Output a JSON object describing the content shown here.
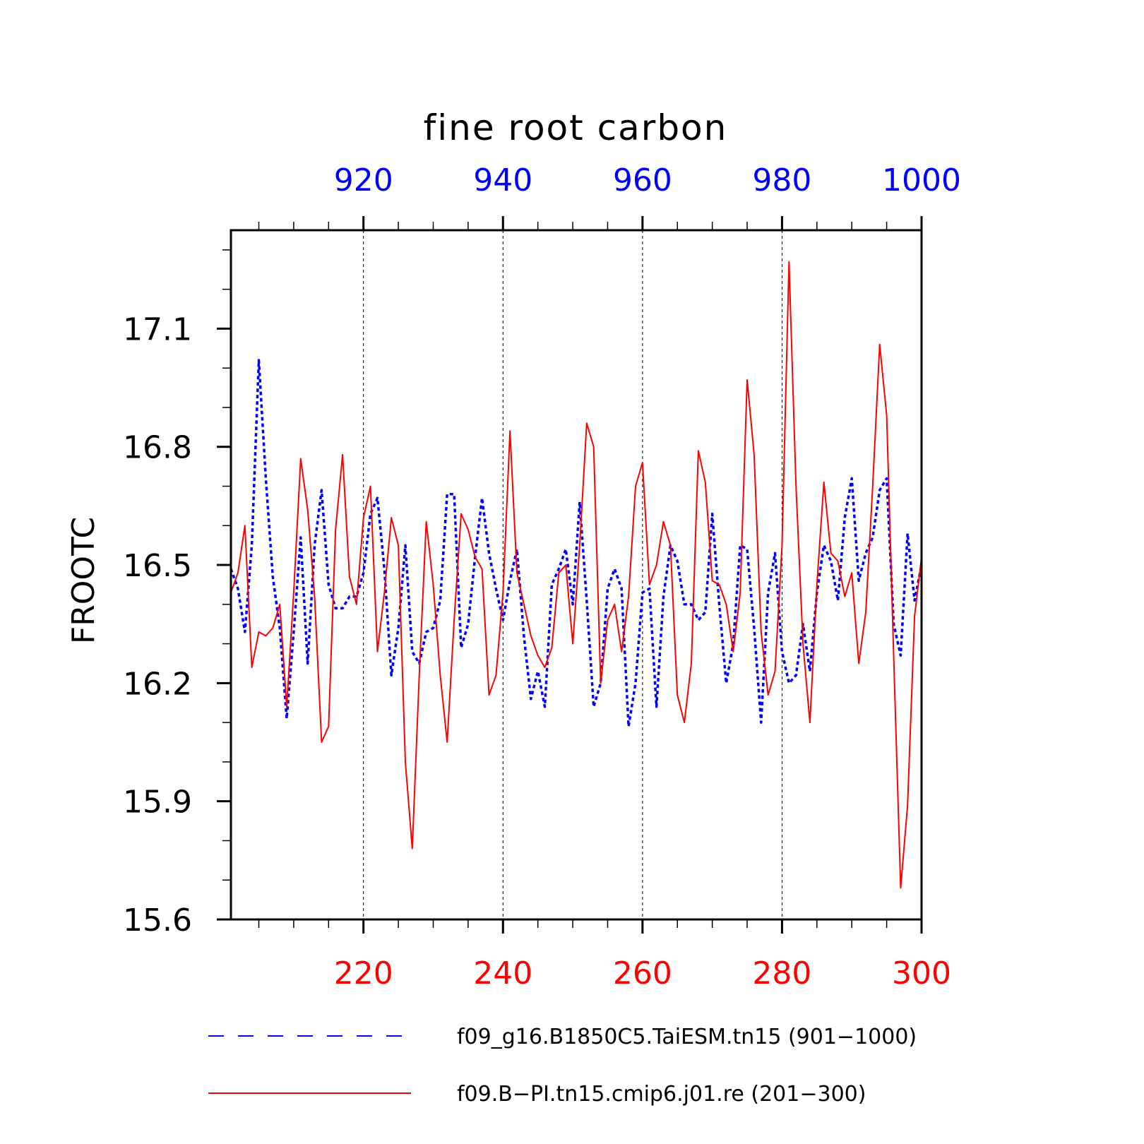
{
  "chart_data": {
    "type": "line",
    "title": "fine root carbon",
    "ylabel": "FROOTC",
    "ylim": [
      15.6,
      17.35
    ],
    "yticks": [
      15.6,
      15.9,
      16.2,
      16.5,
      16.8,
      17.1
    ],
    "ytick_labels": [
      "15.6",
      "15.9",
      "16.2",
      "16.5",
      "16.8",
      "17.1"
    ],
    "x_bottom": {
      "range": [
        201,
        300
      ],
      "ticks": [
        220,
        240,
        260,
        280,
        300
      ],
      "tick_labels": [
        "220",
        "240",
        "260",
        "280",
        "300"
      ],
      "color": "#ff0000"
    },
    "x_top": {
      "range": [
        901,
        1000
      ],
      "ticks": [
        920,
        940,
        960,
        980,
        1000
      ],
      "tick_labels": [
        "920",
        "940",
        "960",
        "980",
        "1000"
      ],
      "color": "#0000ff"
    },
    "vertical_gridlines_at": [
      220,
      240,
      260,
      280
    ],
    "series": [
      {
        "name": "f09_g16.B1850C5.TaiESM.tn15 (901−1000)",
        "color": "#0000ff",
        "style": "dashed",
        "x_start": 901,
        "values": [
          16.49,
          16.44,
          16.33,
          16.55,
          17.02,
          16.72,
          16.47,
          16.34,
          16.11,
          16.33,
          16.57,
          16.25,
          16.55,
          16.69,
          16.45,
          16.39,
          16.39,
          16.42,
          16.42,
          16.48,
          16.63,
          16.67,
          16.49,
          16.22,
          16.34,
          16.55,
          16.28,
          16.25,
          16.33,
          16.34,
          16.41,
          16.68,
          16.68,
          16.29,
          16.35,
          16.52,
          16.67,
          16.53,
          16.44,
          16.36,
          16.46,
          16.54,
          16.32,
          16.16,
          16.23,
          16.14,
          16.45,
          16.49,
          16.54,
          16.4,
          16.66,
          16.41,
          16.14,
          16.2,
          16.44,
          16.49,
          16.44,
          16.09,
          16.2,
          16.43,
          16.44,
          16.14,
          16.42,
          16.55,
          16.51,
          16.4,
          16.4,
          16.36,
          16.38,
          16.63,
          16.4,
          16.2,
          16.3,
          16.55,
          16.54,
          16.34,
          16.1,
          16.43,
          16.53,
          16.28,
          16.2,
          16.22,
          16.35,
          16.23,
          16.43,
          16.55,
          16.51,
          16.41,
          16.62,
          16.72,
          16.46,
          16.53,
          16.57,
          16.69,
          16.72,
          16.35,
          16.27,
          16.58,
          16.41,
          16.5
        ]
      },
      {
        "name": "f09.B−PI.tn15.cmip6.j01.re (201−300)",
        "color": "#ff0000",
        "style": "solid",
        "x_start": 201,
        "values": [
          16.43,
          16.48,
          16.6,
          16.24,
          16.33,
          16.32,
          16.34,
          16.4,
          16.14,
          16.43,
          16.77,
          16.64,
          16.42,
          16.05,
          16.09,
          16.59,
          16.78,
          16.47,
          16.4,
          16.62,
          16.7,
          16.28,
          16.43,
          16.62,
          16.55,
          16.0,
          15.78,
          16.22,
          16.61,
          16.45,
          16.22,
          16.05,
          16.36,
          16.63,
          16.59,
          16.52,
          16.49,
          16.17,
          16.22,
          16.43,
          16.84,
          16.48,
          16.4,
          16.32,
          16.27,
          16.24,
          16.29,
          16.48,
          16.5,
          16.3,
          16.55,
          16.86,
          16.8,
          16.2,
          16.36,
          16.4,
          16.28,
          16.42,
          16.7,
          16.76,
          16.45,
          16.5,
          16.61,
          16.55,
          16.17,
          16.1,
          16.25,
          16.79,
          16.71,
          16.46,
          16.45,
          16.4,
          16.28,
          16.43,
          16.97,
          16.78,
          16.33,
          16.17,
          16.23,
          16.55,
          17.27,
          16.7,
          16.3,
          16.1,
          16.45,
          16.71,
          16.53,
          16.51,
          16.42,
          16.48,
          16.25,
          16.38,
          16.7,
          17.06,
          16.88,
          16.27,
          15.68,
          15.89,
          16.37,
          16.52
        ]
      }
    ],
    "legend": {
      "position": "bottom",
      "entries": [
        "f09_g16.B1850C5.TaiESM.tn15 (901−1000)",
        "f09.B−PI.tn15.cmip6.j01.re (201−300)"
      ]
    },
    "grid": "vertical dashed at major x ticks"
  }
}
